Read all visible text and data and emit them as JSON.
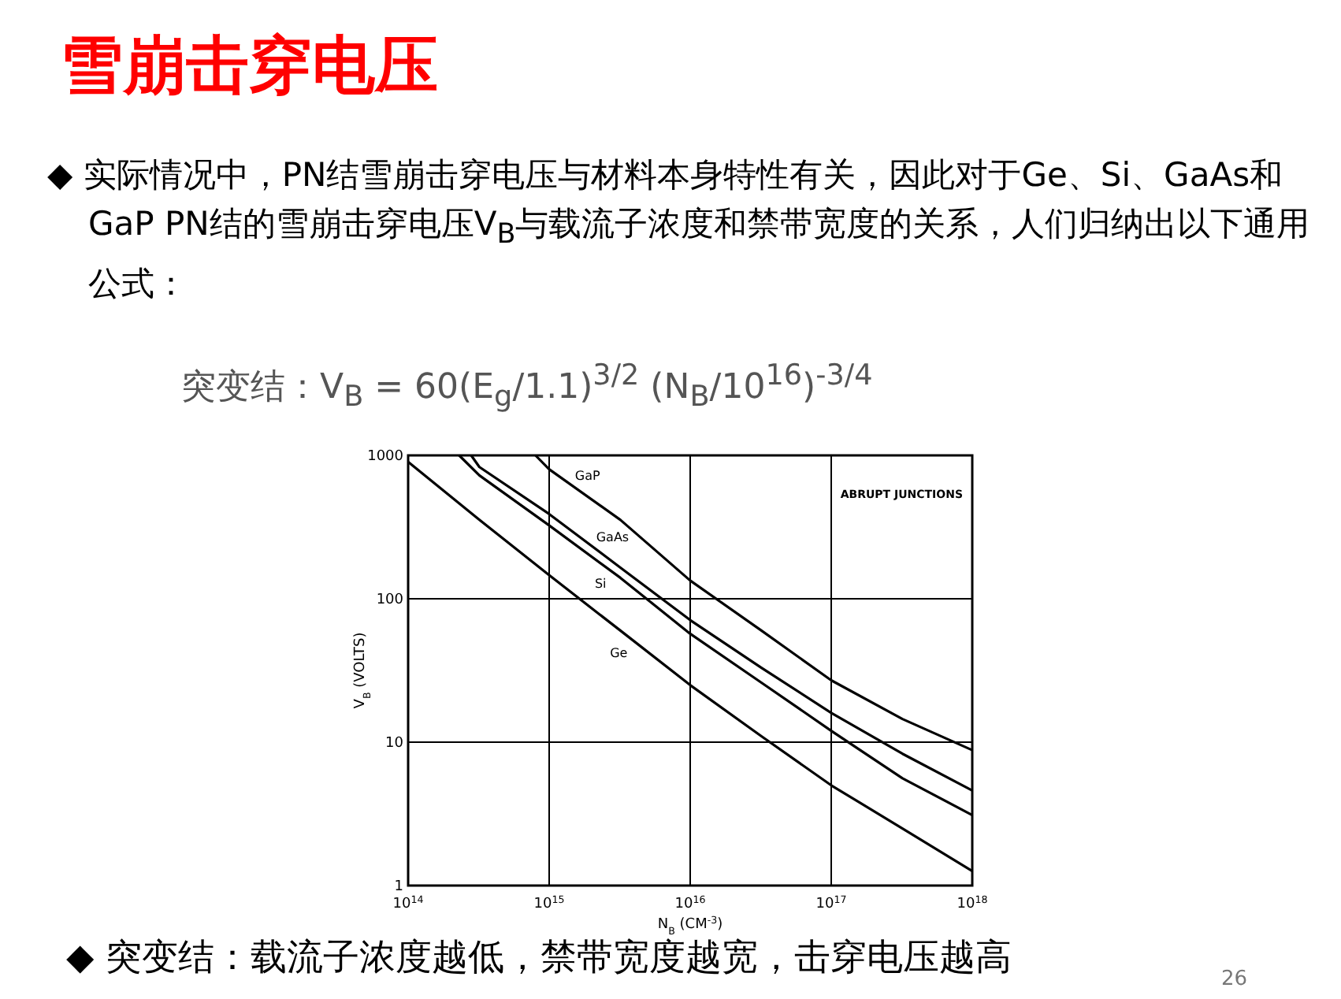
{
  "chart_data": {
    "type": "line",
    "title": "雪崩击穿电压",
    "subtitle": "◆ 实际情况中，PN结雪崩击穿电压与材料本身特性有关，因此对于Ge、Si、GaAs和GaP  PN结的雪崩击穿电压V$_{B}$与载流子浓度和禁带宽度的关系，人们归纳出以下通用公式：",
    "annotations": [
      "突变结：V$_{B}$ = 60(E$_{g}$/1.1)$^{3/2}$ (N$_{B}$/10$^{16}$)$^{-3/4}$",
      "ABRUPT JUNCTIONS",
      "◆ 突变结：载流子浓度越低，禁带宽度越宽，击穿电压越高",
      "26"
    ],
    "xlabel": "N$_{B}$ (CM$^{-3}$)",
    "ylabel": "V$_{B}$ (VOLTS)",
    "log": "xy",
    "grid": true,
    "line_style": "solid",
    "xlim": [
      100000000000000,
      1000000000000000000
    ],
    "ylim": [
      1,
      1000
    ],
    "xticks": [
      {
        "value": 100000000000000,
        "label": "10$^{14}$"
      },
      {
        "value": 1000000000000000,
        "label": "10$^{15}$"
      },
      {
        "value": 10000000000000000,
        "label": "10$^{16}$"
      },
      {
        "value": 100000000000000000,
        "label": "10$^{17}$"
      },
      {
        "value": 1000000000000000000,
        "label": "10$^{18}$"
      }
    ],
    "yticks": [
      1,
      10,
      100,
      1000
    ],
    "series": [
      {
        "name": "GaP",
        "color": "#000000",
        "x": [
          800000000000000,
          1000000000000000,
          3200000000000000,
          10000000000000000,
          32000000000000000,
          100000000000000000,
          320000000000000000,
          1000000000000000000
        ],
        "values": [
          1000,
          800,
          355,
          134,
          60,
          27,
          14.5,
          8.8
        ]
      },
      {
        "name": "GaAs",
        "color": "#000000",
        "x": [
          280000000000000,
          320000000000000,
          1000000000000000,
          3200000000000000,
          10000000000000000,
          32000000000000000,
          100000000000000000,
          320000000000000000,
          1000000000000000000
        ],
        "values": [
          1000,
          830,
          390,
          165,
          71,
          33,
          16,
          8.3,
          4.6
        ]
      },
      {
        "name": "Si",
        "color": "#000000",
        "x": [
          230000000000000,
          320000000000000,
          1000000000000000,
          3200000000000000,
          10000000000000000,
          32000000000000000,
          100000000000000000,
          320000000000000000,
          1000000000000000000
        ],
        "values": [
          1000,
          725,
          325,
          140,
          57,
          26,
          12,
          5.6,
          3.1
        ]
      },
      {
        "name": "Ge",
        "color": "#000000",
        "x": [
          100000000000000,
          320000000000000,
          1000000000000000,
          3200000000000000,
          10000000000000000,
          32000000000000000,
          100000000000000000,
          320000000000000000,
          1000000000000000000
        ],
        "values": [
          900,
          355,
          146,
          60,
          25,
          11,
          5,
          2.5,
          1.26
        ]
      }
    ]
  }
}
